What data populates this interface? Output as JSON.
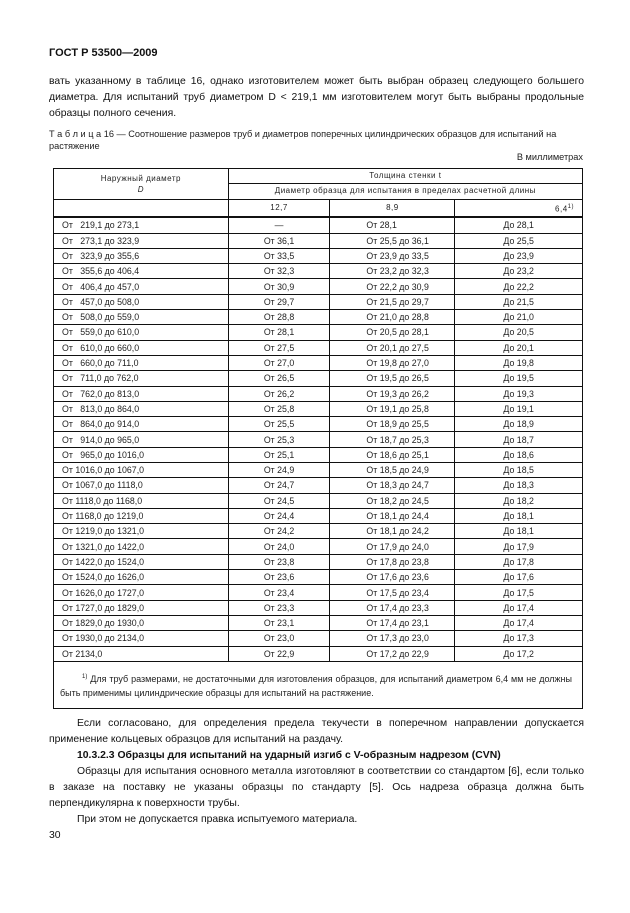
{
  "header": {
    "title": "ГОСТ Р 53500—2009"
  },
  "intro": "вать указанному в таблице 16, однако изготовителем может быть выбран образец следующего большего диаметра. Для испытаний труб диаметром D < 219,1 мм изготовителем могут быть выбраны продольные образцы полного сечения.",
  "table_caption": "Т а б л и ц а  16 — Соотношение размеров труб и диаметров поперечных цилиндрических образцов для испытаний на растяжение",
  "units": "В миллиметрах",
  "table": {
    "col0_header": "Наружный диаметр",
    "col0_sub": "D",
    "group_header": "Толщина стенки t",
    "sub_header": "Диаметр образца для испытания в пределах расчетной длины",
    "columns": [
      "12,7",
      "8,9",
      "6,4"
    ],
    "footnote_mark": "1)",
    "rows": [
      [
        "От   219,1 до 273,1",
        "—",
        "От 28,1",
        "До 28,1"
      ],
      [
        "От   273,1 до 323,9",
        "От 36,1",
        "От 25,5 до 36,1",
        "До 25,5"
      ],
      [
        "От   323,9 до 355,6",
        "От 33,5",
        "От 23,9 до 33,5",
        "До 23,9"
      ],
      [
        "От   355,6 до 406,4",
        "От 32,3",
        "От 23,2 до 32,3",
        "До 23,2"
      ],
      [
        "От   406,4 до 457,0",
        "От 30,9",
        "От 22,2 до 30,9",
        "До 22,2"
      ],
      [
        "От   457,0 до 508,0",
        "От 29,7",
        "От 21,5 до 29,7",
        "До 21,5"
      ],
      [
        "От   508,0 до 559,0",
        "От 28,8",
        "От 21,0 до 28,8",
        "До 21,0"
      ],
      [
        "От   559,0 до 610,0",
        "От 28,1",
        "От 20,5 до 28,1",
        "До 20,5"
      ],
      [
        "От   610,0 до 660,0",
        "От 27,5",
        "От 20,1 до 27,5",
        "До 20,1"
      ],
      [
        "От   660,0 до 711,0",
        "От 27,0",
        "От 19,8 до 27,0",
        "До 19,8"
      ],
      [
        "От   711,0 до 762,0",
        "От 26,5",
        "От 19,5 до 26,5",
        "До 19,5"
      ],
      [
        "От   762,0 до 813,0",
        "От 26,2",
        "От 19,3 до 26,2",
        "До 19,3"
      ],
      [
        "От   813,0 до 864,0",
        "От 25,8",
        "От 19,1 до 25,8",
        "До 19,1"
      ],
      [
        "От   864,0 до 914,0",
        "От 25,5",
        "От 18,9 до 25,5",
        "До 18,9"
      ],
      [
        "От   914,0 до 965,0",
        "От 25,3",
        "От 18,7 до 25,3",
        "До 18,7"
      ],
      [
        "От   965,0 до 1016,0",
        "От 25,1",
        "От 18,6 до 25,1",
        "До 18,6"
      ],
      [
        "От 1016,0 до 1067,0",
        "От 24,9",
        "От 18,5 до 24,9",
        "До 18,5"
      ],
      [
        "От 1067,0 до 1118,0",
        "От 24,7",
        "От 18,3 до 24,7",
        "До 18,3"
      ],
      [
        "От 1118,0 до 1168,0",
        "От 24,5",
        "От 18,2 до 24,5",
        "До 18,2"
      ],
      [
        "От 1168,0 до 1219,0",
        "От 24,4",
        "От 18,1 до 24,4",
        "До 18,1"
      ],
      [
        "От 1219,0 до 1321,0",
        "От 24,2",
        "От 18,1 до 24,2",
        "До 18,1"
      ],
      [
        "От 1321,0 до 1422,0",
        "От 24,0",
        "От 17,9 до 24,0",
        "До 17,9"
      ],
      [
        "От 1422,0 до 1524,0",
        "От 23,8",
        "От 17,8 до 23,8",
        "До 17,8"
      ],
      [
        "От 1524,0 до 1626,0",
        "От 23,6",
        "От 17,6 до 23,6",
        "До 17,6"
      ],
      [
        "От 1626,0 до 1727,0",
        "От 23,4",
        "От 17,5 до 23,4",
        "До 17,5"
      ],
      [
        "От 1727,0 до 1829,0",
        "От 23,3",
        "От 17,4 до 23,3",
        "До 17,4"
      ],
      [
        "От 1829,0 до 1930,0",
        "От 23,1",
        "От 17,4 до 23,1",
        "До 17,4"
      ],
      [
        "От 1930,0 до 2134,0",
        "От 23,0",
        "От 17,3 до 23,0",
        "До 17,3"
      ],
      [
        "От 2134,0",
        "От 22,9",
        "От 17,2 до 22,9",
        "До 17,2"
      ]
    ],
    "footnote": "Для труб размерами, не достаточными для изготовления образцов, для испытаний диаметром 6,4 мм не должны быть применимы цилиндрические образцы для испытаний на растяжение."
  },
  "para1": "Если согласовано, для определения предела текучести в поперечном направлении допускается применение кольцевых образцов для испытаний на раздачу.",
  "section_heading": "10.3.2.3 Образцы для испытаний на ударный изгиб с V-образным надрезом (CVN)",
  "para2": "Образцы для испытания основного металла изготовляют в соответствии со стандартом [6], если только в заказе на поставку не указаны образцы по стандарту [5]. Ось надреза образца должна быть перпендикулярна к поверхности трубы.",
  "para3": "При этом не допускается правка испытуемого материала.",
  "page_number": "30"
}
